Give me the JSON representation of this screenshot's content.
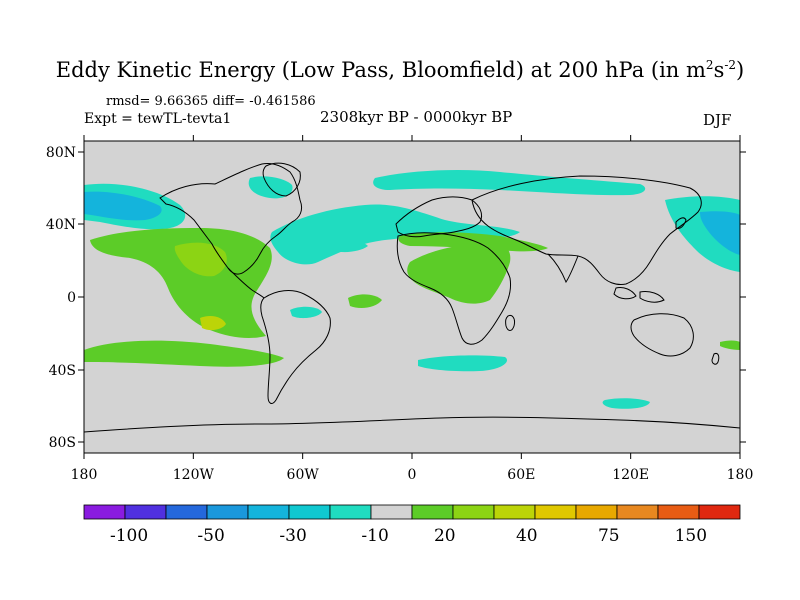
{
  "header": {
    "title_main": "Eddy Kinetic Energy (Low Pass, Bloomfield) at 200 hPa (in m",
    "title_sup1": "2",
    "title_mid": "s",
    "title_sup2": "-2",
    "title_end": ")",
    "stats": "rmsd= 9.66365 diff= -0.461586",
    "experiment": "Expt = tewTL-tevta1",
    "period": "2308kyr BP - 0000kyr BP",
    "season": "DJF"
  },
  "map": {
    "background_color": "#d3d3d3",
    "lat_ticks": [
      "80N",
      "40N",
      "0",
      "40S",
      "80S"
    ],
    "lon_ticks": [
      "180",
      "120W",
      "60W",
      "0",
      "60E",
      "120E",
      "180"
    ]
  },
  "colorbar": {
    "colors": [
      "#8a1be0",
      "#5030e0",
      "#2468dc",
      "#1a98dc",
      "#14b4dc",
      "#10c8d0",
      "#20dcc0",
      "#d3d3d3",
      "#5ccc28",
      "#8cd414",
      "#bcd408",
      "#e0c800",
      "#e8a800",
      "#e88820",
      "#e85c14",
      "#e02810"
    ],
    "labels": [
      "-100",
      "-50",
      "-30",
      "-10",
      "20",
      "40",
      "75",
      "150"
    ]
  }
}
